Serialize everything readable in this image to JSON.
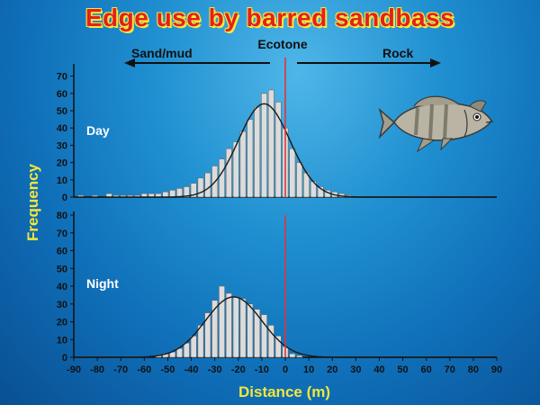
{
  "title": "Edge use by barred sandbass",
  "labels": {
    "ecotone": "Ecotone",
    "left_habitat": "Sand/mud",
    "right_habitat": "Rock"
  },
  "colors": {
    "title": "#e3211e",
    "title_outline": "#f6e83a",
    "axis_title": "#f2e63a",
    "ecotone_line": "#e0343a",
    "bar_fill": "#dcdcdc",
    "curve": "#1a1a1a"
  },
  "icons": {
    "fish": "barred-sandbass-fish-illustration"
  },
  "chart_data": [
    {
      "type": "bar",
      "panel_label": "Day",
      "x": [
        -87,
        -84,
        -81,
        -78,
        -75,
        -72,
        -69,
        -66,
        -63,
        -60,
        -57,
        -54,
        -51,
        -48,
        -45,
        -42,
        -39,
        -36,
        -33,
        -30,
        -27,
        -24,
        -21,
        -18,
        -15,
        -12,
        -9,
        -6,
        -3,
        0,
        3,
        6,
        9,
        12,
        15,
        18,
        21,
        24,
        27
      ],
      "values": [
        1,
        0,
        1,
        0,
        2,
        1,
        1,
        1,
        1,
        2,
        2,
        2,
        3,
        4,
        5,
        6,
        8,
        11,
        14,
        18,
        22,
        28,
        32,
        38,
        45,
        52,
        60,
        62,
        55,
        40,
        28,
        20,
        14,
        9,
        6,
        4,
        3,
        2,
        1
      ],
      "fit_curve": {
        "kind": "gaussian",
        "mean": -9,
        "sd": 11,
        "peak": 54
      },
      "ylim": [
        0,
        75
      ],
      "yticks": [
        0,
        10,
        20,
        30,
        40,
        50,
        60,
        70
      ],
      "marker_x": 0
    },
    {
      "type": "bar",
      "panel_label": "Night",
      "x": [
        -54,
        -51,
        -48,
        -45,
        -42,
        -39,
        -36,
        -33,
        -30,
        -27,
        -24,
        -21,
        -18,
        -15,
        -12,
        -9,
        -6,
        -3,
        0,
        3,
        6
      ],
      "values": [
        1,
        2,
        3,
        5,
        8,
        12,
        18,
        25,
        32,
        40,
        36,
        34,
        33,
        30,
        27,
        24,
        18,
        12,
        6,
        2,
        1
      ],
      "fit_curve": {
        "kind": "gaussian",
        "mean": -22,
        "sd": 12,
        "peak": 34
      },
      "ylim": [
        0,
        80
      ],
      "yticks": [
        0,
        10,
        20,
        30,
        40,
        50,
        60,
        70,
        80
      ],
      "marker_x": 0
    }
  ],
  "axes": {
    "xlim": [
      -90,
      90
    ],
    "xticks": [
      -90,
      -80,
      -70,
      -60,
      -50,
      -40,
      -30,
      -20,
      -10,
      0,
      10,
      20,
      30,
      40,
      50,
      60,
      70,
      80,
      90
    ],
    "xlabel": "Distance (m)",
    "ylabel": "Frequency"
  }
}
